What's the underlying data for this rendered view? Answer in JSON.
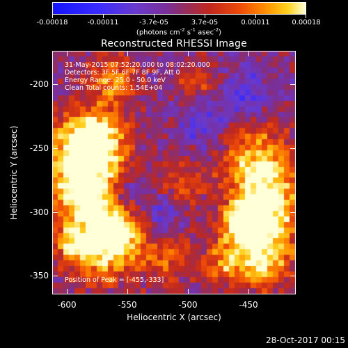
{
  "colorbar": {
    "ticks": [
      "-0.00018",
      "-0.00011",
      "-3.7e-05",
      "3.7e-05",
      "0.00011",
      "0.00018"
    ],
    "units_prefix": "(photons cm",
    "units_exp1": "-2",
    "units_mid1": " s",
    "units_exp2": "-1",
    "units_mid2": " asec",
    "units_exp3": "-2",
    "units_suffix": ")"
  },
  "title": "Reconstructed RHESSI Image",
  "info": {
    "time_range": "31-May-2015 07:52:20.000 to 08:02:20.000",
    "detectors": "Detectors: 3F 5F 6F 7F 8F 9F, Att 0",
    "energy": "Energy Range: 25.0 - 50.0 keV",
    "clean": "Clean     Total counts: 1.54E+04",
    "peak": "Position of Peak = [-455,-333]"
  },
  "axes": {
    "xlabel": "Heliocentric X (arcsec)",
    "ylabel": "Heliocentric Y (arcsec)",
    "xticks": [
      "-600",
      "-550",
      "-500",
      "-450"
    ],
    "yticks": [
      "-200",
      "-250",
      "-300",
      "-350"
    ]
  },
  "timestamp": "28-Oct-2017 00:15"
}
